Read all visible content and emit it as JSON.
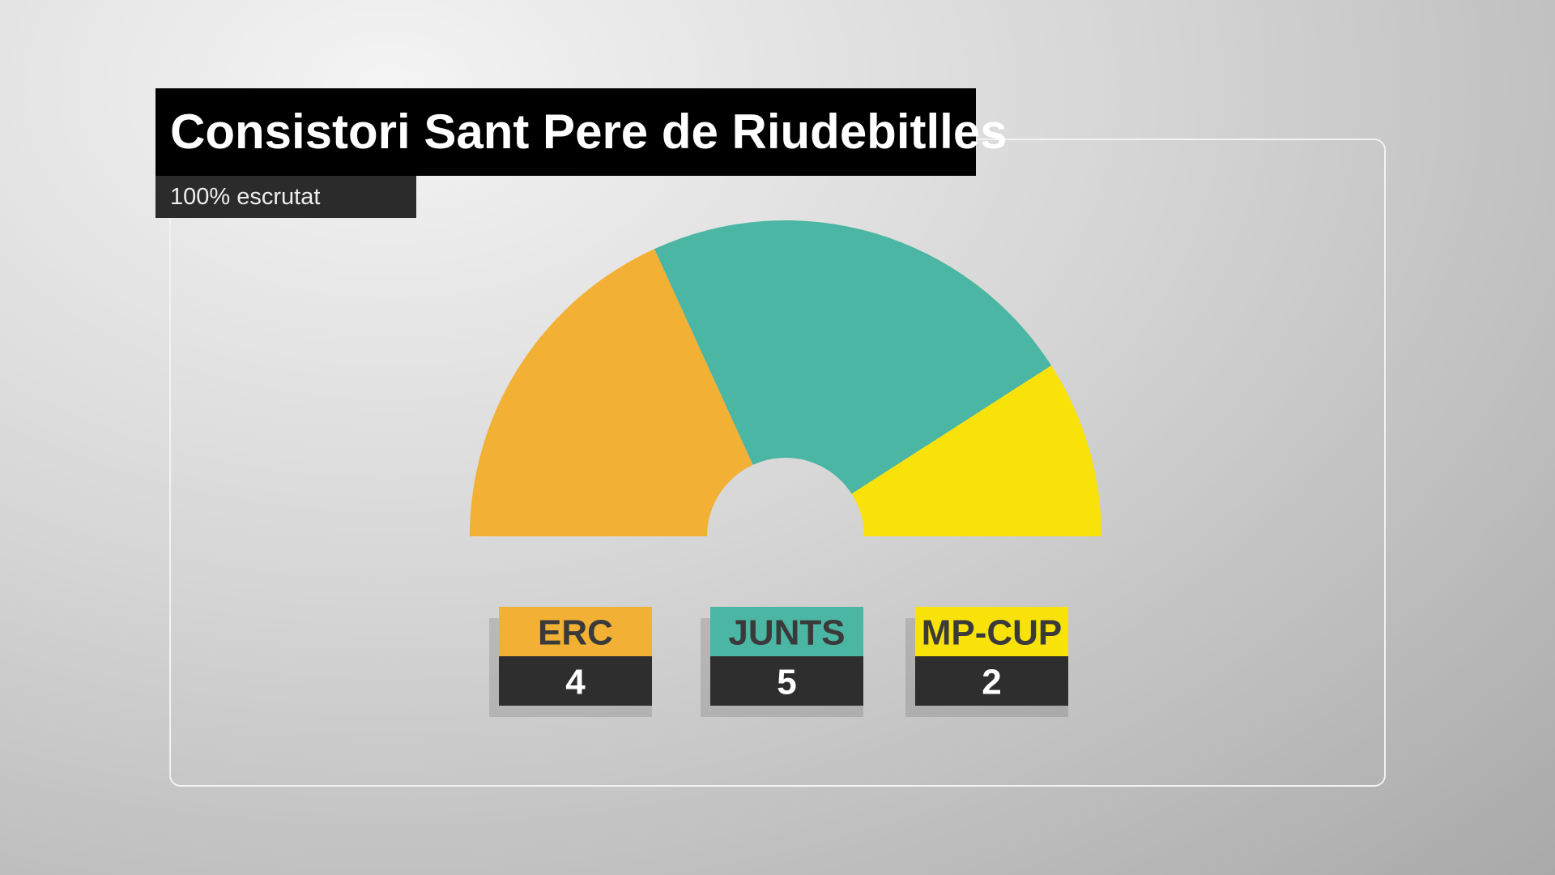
{
  "chart_data": {
    "type": "half-donut",
    "title": "Consistori Sant Pere de Riudebitlles",
    "subtitle": "100% escrutat",
    "categories": [
      "ERC",
      "JUNTS",
      "MP-CUP"
    ],
    "values": [
      4,
      5,
      2
    ],
    "colors": [
      "#f2b035",
      "#4bb6a3",
      "#f8e20a"
    ]
  }
}
